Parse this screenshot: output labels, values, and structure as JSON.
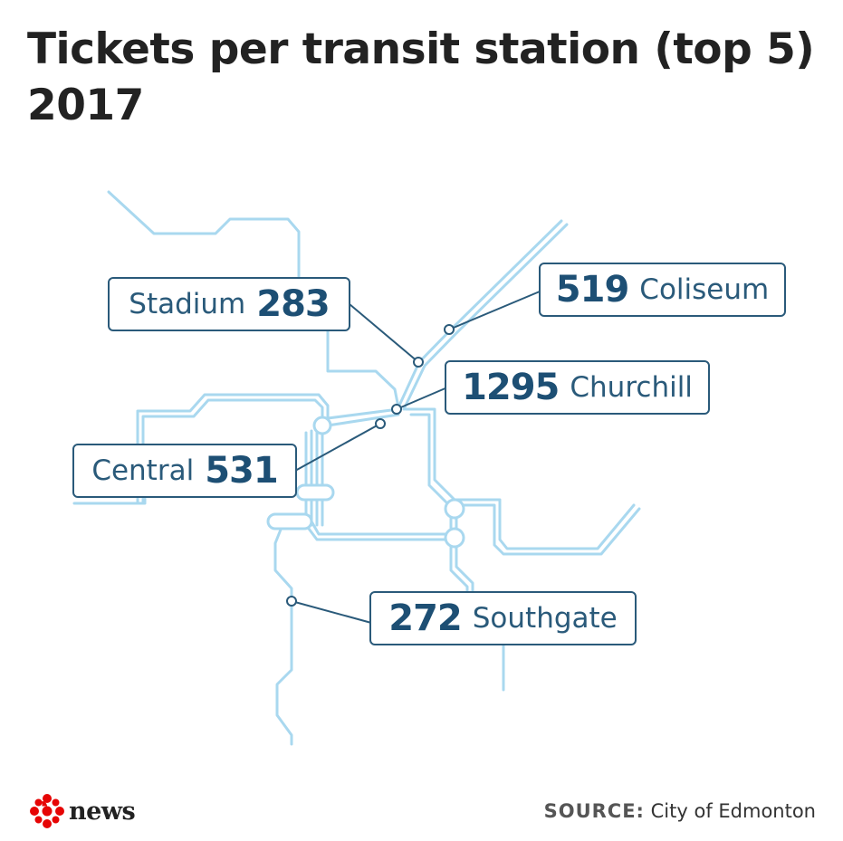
{
  "title": {
    "line1": "Tickets per transit station (top 5)",
    "line2": "2017"
  },
  "stations": [
    {
      "name": "Coliseum",
      "tickets": "519"
    },
    {
      "name": "Stadium",
      "tickets": "283"
    },
    {
      "name": "Churchill",
      "tickets": "1295"
    },
    {
      "name": "Central",
      "tickets": "531"
    },
    {
      "name": "Southgate",
      "tickets": "272"
    }
  ],
  "footer": {
    "brand": "news",
    "brand_icon": "cbc-gem-icon",
    "source_label": "SOURCE:",
    "source_text": "City of Edmonton"
  },
  "colors": {
    "route_line": "#9fd3ec",
    "route_dark": "#6fb9df",
    "label_border": "#2a5a7a",
    "label_text": "#1d4f74",
    "brand_red": "#e60505"
  }
}
